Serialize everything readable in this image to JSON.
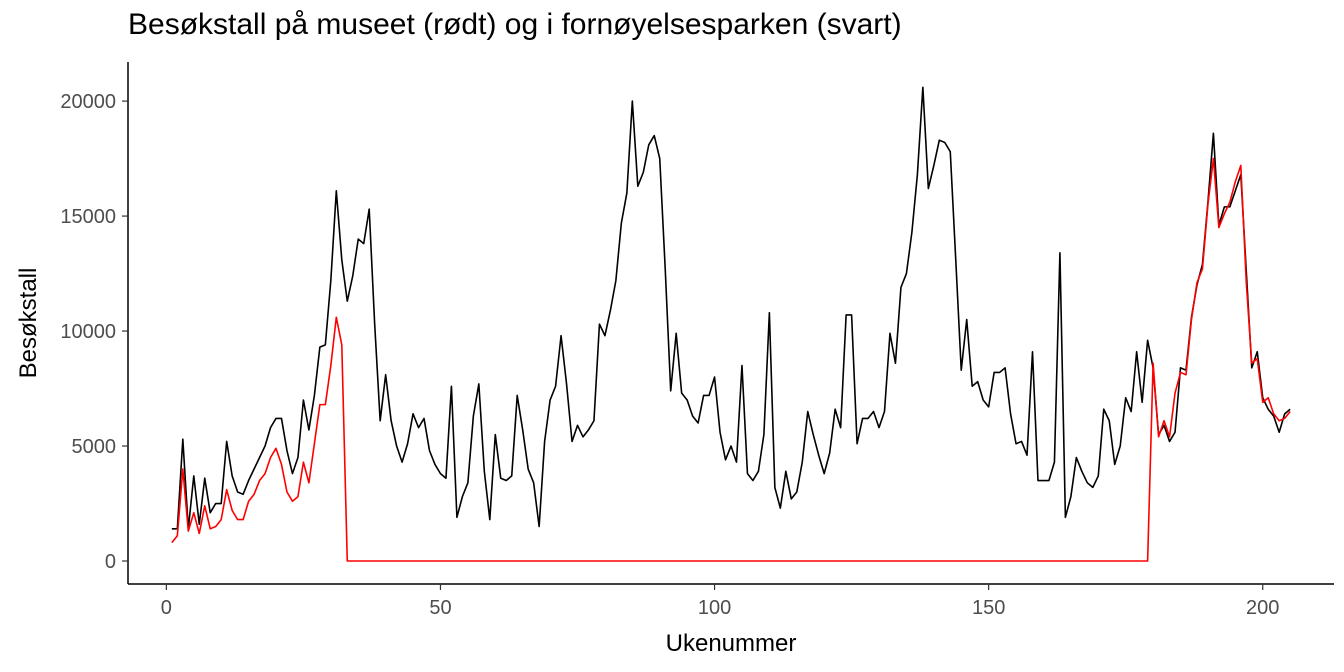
{
  "chart_data": {
    "type": "line",
    "title": "Besøkstall på museet (rødt) og i fornøyelsesparken (svart)",
    "xlabel": "Ukenummer",
    "ylabel": "Besøkstall",
    "xlim": [
      -7,
      213
    ],
    "ylim": [
      -1000,
      21700
    ],
    "x_ticks": [
      0,
      50,
      100,
      150,
      200
    ],
    "y_ticks": [
      0,
      5000,
      10000,
      15000,
      20000
    ],
    "grid": false,
    "legend": "none",
    "series": [
      {
        "color": "#000000",
        "points": [
          [
            1,
            1400
          ],
          [
            2,
            1400
          ],
          [
            3,
            5300
          ],
          [
            4,
            1400
          ],
          [
            5,
            3700
          ],
          [
            6,
            1600
          ],
          [
            7,
            3600
          ],
          [
            8,
            2100
          ],
          [
            9,
            2500
          ],
          [
            10,
            2500
          ],
          [
            11,
            5200
          ],
          [
            12,
            3700
          ],
          [
            13,
            3000
          ],
          [
            14,
            2900
          ],
          [
            15,
            3500
          ],
          [
            16,
            4000
          ],
          [
            17,
            4500
          ],
          [
            18,
            5000
          ],
          [
            19,
            5800
          ],
          [
            20,
            6200
          ],
          [
            21,
            6200
          ],
          [
            22,
            4800
          ],
          [
            23,
            3800
          ],
          [
            24,
            4500
          ],
          [
            25,
            7000
          ],
          [
            26,
            5700
          ],
          [
            27,
            7200
          ],
          [
            28,
            9300
          ],
          [
            29,
            9400
          ],
          [
            30,
            12200
          ],
          [
            31,
            16100
          ],
          [
            32,
            13100
          ],
          [
            33,
            11300
          ],
          [
            34,
            12400
          ],
          [
            35,
            14000
          ],
          [
            36,
            13800
          ],
          [
            37,
            15300
          ],
          [
            38,
            10300
          ],
          [
            39,
            6100
          ],
          [
            40,
            8100
          ],
          [
            41,
            6100
          ],
          [
            42,
            5000
          ],
          [
            43,
            4300
          ],
          [
            44,
            5100
          ],
          [
            45,
            6400
          ],
          [
            46,
            5800
          ],
          [
            47,
            6200
          ],
          [
            48,
            4800
          ],
          [
            49,
            4200
          ],
          [
            50,
            3800
          ],
          [
            51,
            3600
          ],
          [
            52,
            7600
          ],
          [
            53,
            1900
          ],
          [
            54,
            2800
          ],
          [
            55,
            3400
          ],
          [
            56,
            6300
          ],
          [
            57,
            7700
          ],
          [
            58,
            3900
          ],
          [
            59,
            1800
          ],
          [
            60,
            5500
          ],
          [
            61,
            3600
          ],
          [
            62,
            3500
          ],
          [
            63,
            3700
          ],
          [
            64,
            7200
          ],
          [
            65,
            5700
          ],
          [
            66,
            4000
          ],
          [
            67,
            3400
          ],
          [
            68,
            1500
          ],
          [
            69,
            5200
          ],
          [
            70,
            7000
          ],
          [
            71,
            7600
          ],
          [
            72,
            9800
          ],
          [
            73,
            7700
          ],
          [
            74,
            5200
          ],
          [
            75,
            5900
          ],
          [
            76,
            5400
          ],
          [
            77,
            5700
          ],
          [
            78,
            6100
          ],
          [
            79,
            10300
          ],
          [
            80,
            9800
          ],
          [
            81,
            10900
          ],
          [
            82,
            12200
          ],
          [
            83,
            14700
          ],
          [
            84,
            16000
          ],
          [
            85,
            20000
          ],
          [
            86,
            16300
          ],
          [
            87,
            16900
          ],
          [
            88,
            18100
          ],
          [
            89,
            18500
          ],
          [
            90,
            17500
          ],
          [
            91,
            12700
          ],
          [
            92,
            7400
          ],
          [
            93,
            9900
          ],
          [
            94,
            7300
          ],
          [
            95,
            7000
          ],
          [
            96,
            6300
          ],
          [
            97,
            6000
          ],
          [
            98,
            7200
          ],
          [
            99,
            7200
          ],
          [
            100,
            8000
          ],
          [
            101,
            5600
          ],
          [
            102,
            4400
          ],
          [
            103,
            5000
          ],
          [
            104,
            4300
          ],
          [
            105,
            8500
          ],
          [
            106,
            3800
          ],
          [
            107,
            3500
          ],
          [
            108,
            3900
          ],
          [
            109,
            5500
          ],
          [
            110,
            10800
          ],
          [
            111,
            3200
          ],
          [
            112,
            2300
          ],
          [
            113,
            3900
          ],
          [
            114,
            2700
          ],
          [
            115,
            3000
          ],
          [
            116,
            4300
          ],
          [
            117,
            6500
          ],
          [
            118,
            5500
          ],
          [
            119,
            4600
          ],
          [
            120,
            3800
          ],
          [
            121,
            4700
          ],
          [
            122,
            6600
          ],
          [
            123,
            5800
          ],
          [
            124,
            10700
          ],
          [
            125,
            10700
          ],
          [
            126,
            5100
          ],
          [
            127,
            6200
          ],
          [
            128,
            6200
          ],
          [
            129,
            6500
          ],
          [
            130,
            5800
          ],
          [
            131,
            6500
          ],
          [
            132,
            9900
          ],
          [
            133,
            8600
          ],
          [
            134,
            11900
          ],
          [
            135,
            12500
          ],
          [
            136,
            14300
          ],
          [
            137,
            16800
          ],
          [
            138,
            20600
          ],
          [
            139,
            16200
          ],
          [
            140,
            17200
          ],
          [
            141,
            18300
          ],
          [
            142,
            18200
          ],
          [
            143,
            17800
          ],
          [
            144,
            13100
          ],
          [
            145,
            8300
          ],
          [
            146,
            10500
          ],
          [
            147,
            7600
          ],
          [
            148,
            7800
          ],
          [
            149,
            7000
          ],
          [
            150,
            6700
          ],
          [
            151,
            8200
          ],
          [
            152,
            8200
          ],
          [
            153,
            8400
          ],
          [
            154,
            6400
          ],
          [
            155,
            5100
          ],
          [
            156,
            5200
          ],
          [
            157,
            4600
          ],
          [
            158,
            9100
          ],
          [
            159,
            3500
          ],
          [
            160,
            3500
          ],
          [
            161,
            3500
          ],
          [
            162,
            4300
          ],
          [
            163,
            13400
          ],
          [
            164,
            1900
          ],
          [
            165,
            2800
          ],
          [
            166,
            4500
          ],
          [
            167,
            3900
          ],
          [
            168,
            3400
          ],
          [
            169,
            3200
          ],
          [
            170,
            3700
          ],
          [
            171,
            6600
          ],
          [
            172,
            6100
          ],
          [
            173,
            4200
          ],
          [
            174,
            5000
          ],
          [
            175,
            7100
          ],
          [
            176,
            6500
          ],
          [
            177,
            9100
          ],
          [
            178,
            6900
          ],
          [
            179,
            9600
          ],
          [
            180,
            8400
          ],
          [
            181,
            5500
          ],
          [
            182,
            5900
          ],
          [
            183,
            5200
          ],
          [
            184,
            5600
          ],
          [
            185,
            8400
          ],
          [
            186,
            8300
          ],
          [
            187,
            10600
          ],
          [
            188,
            12000
          ],
          [
            189,
            12900
          ],
          [
            190,
            15600
          ],
          [
            191,
            18600
          ],
          [
            192,
            14600
          ],
          [
            193,
            15400
          ],
          [
            194,
            15400
          ],
          [
            195,
            16100
          ],
          [
            196,
            16800
          ],
          [
            197,
            12600
          ],
          [
            198,
            8400
          ],
          [
            199,
            9100
          ],
          [
            200,
            7100
          ],
          [
            201,
            6600
          ],
          [
            202,
            6300
          ],
          [
            203,
            5600
          ],
          [
            204,
            6400
          ],
          [
            205,
            6600
          ]
        ]
      },
      {
        "color": "#ff0000",
        "points": [
          [
            1,
            800
          ],
          [
            2,
            1100
          ],
          [
            3,
            4000
          ],
          [
            4,
            1300
          ],
          [
            5,
            2100
          ],
          [
            6,
            1200
          ],
          [
            7,
            2400
          ],
          [
            8,
            1400
          ],
          [
            9,
            1500
          ],
          [
            10,
            1800
          ],
          [
            11,
            3100
          ],
          [
            12,
            2200
          ],
          [
            13,
            1800
          ],
          [
            14,
            1800
          ],
          [
            15,
            2600
          ],
          [
            16,
            2900
          ],
          [
            17,
            3500
          ],
          [
            18,
            3800
          ],
          [
            19,
            4500
          ],
          [
            20,
            4900
          ],
          [
            21,
            4200
          ],
          [
            22,
            3000
          ],
          [
            23,
            2600
          ],
          [
            24,
            2800
          ],
          [
            25,
            4300
          ],
          [
            26,
            3400
          ],
          [
            27,
            5100
          ],
          [
            28,
            6800
          ],
          [
            29,
            6800
          ],
          [
            30,
            8500
          ],
          [
            31,
            10600
          ],
          [
            32,
            9400
          ],
          [
            33,
            0
          ],
          [
            34,
            0
          ],
          [
            179,
            0
          ],
          [
            180,
            8600
          ],
          [
            181,
            5400
          ],
          [
            182,
            6100
          ],
          [
            183,
            5400
          ],
          [
            184,
            7300
          ],
          [
            185,
            8200
          ],
          [
            186,
            8100
          ],
          [
            187,
            10500
          ],
          [
            188,
            12100
          ],
          [
            189,
            12700
          ],
          [
            190,
            15500
          ],
          [
            191,
            17500
          ],
          [
            192,
            14500
          ],
          [
            193,
            15100
          ],
          [
            194,
            15600
          ],
          [
            195,
            16500
          ],
          [
            196,
            17200
          ],
          [
            197,
            12100
          ],
          [
            198,
            8600
          ],
          [
            199,
            8800
          ],
          [
            200,
            6900
          ],
          [
            201,
            7100
          ],
          [
            202,
            6400
          ],
          [
            203,
            6100
          ],
          [
            204,
            6200
          ],
          [
            205,
            6500
          ]
        ]
      }
    ]
  }
}
